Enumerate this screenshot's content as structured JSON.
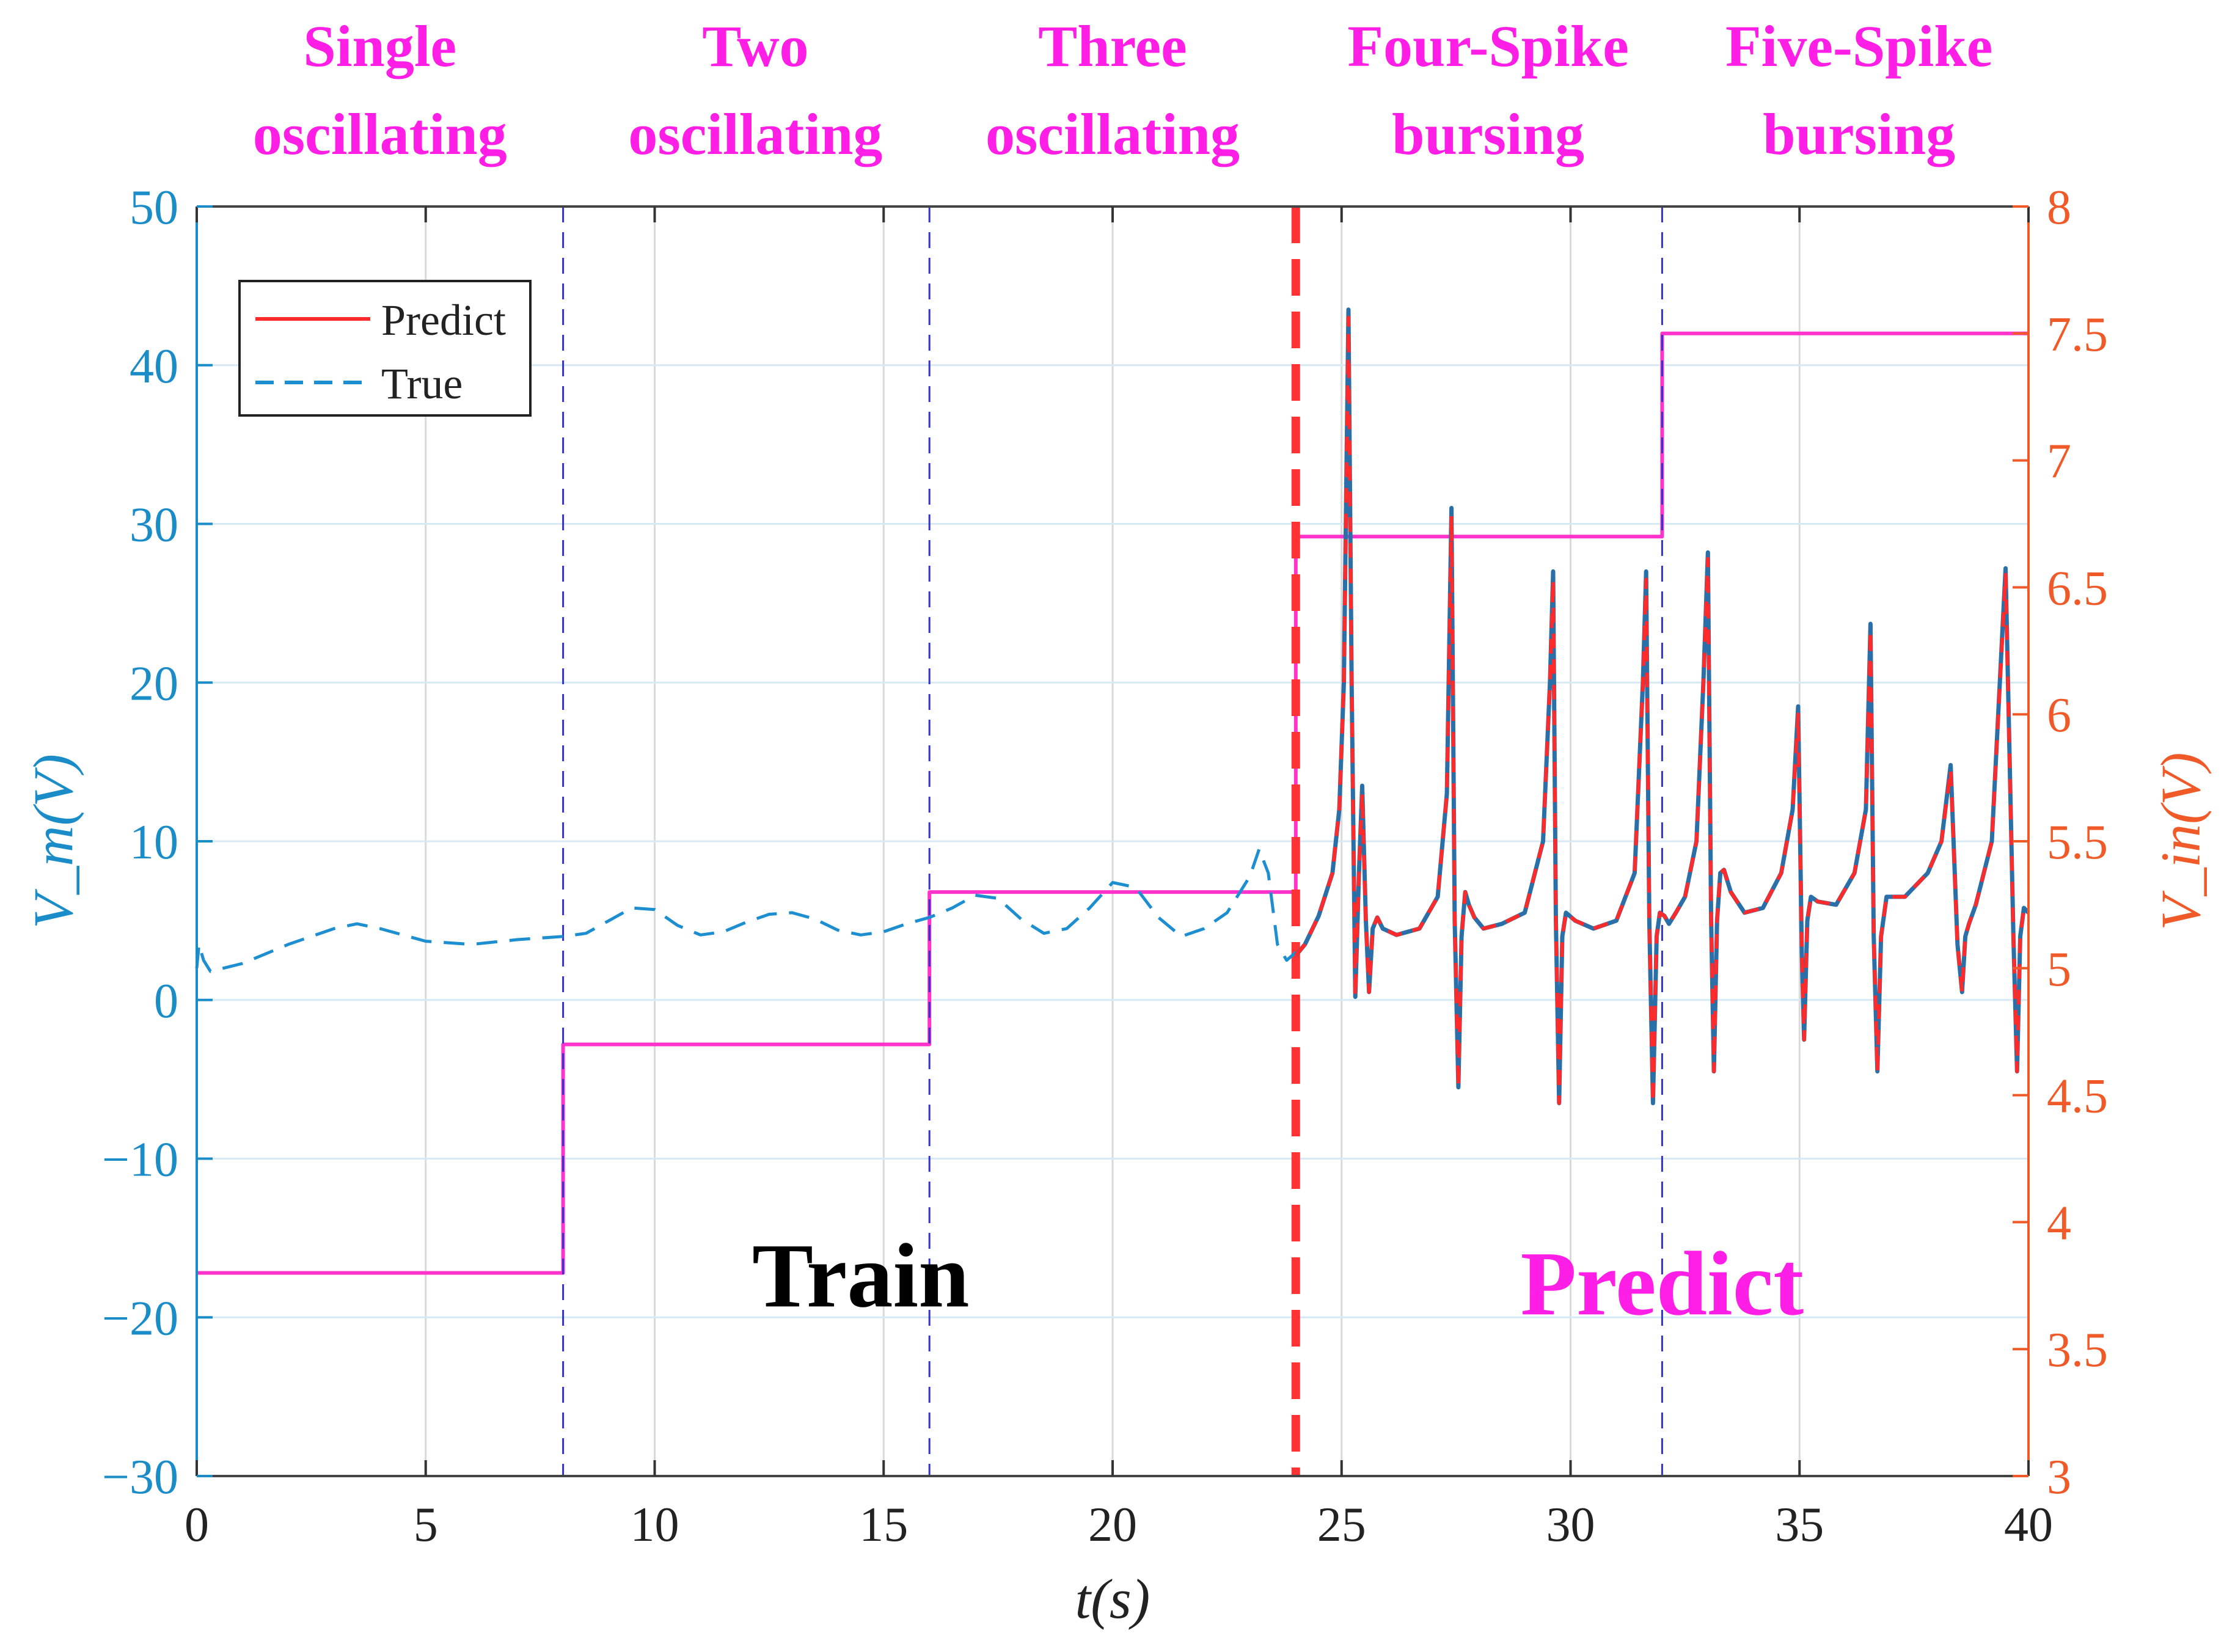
{
  "chart_data": {
    "type": "line",
    "xlabel": "t(s)",
    "ylabel_left": "V_m(V)",
    "ylabel_right": "V_in(V)",
    "xlim": [
      0,
      40
    ],
    "ylim_left": [
      -30,
      50
    ],
    "ylim_right": [
      3,
      8
    ],
    "xticks": [
      0,
      5,
      10,
      15,
      20,
      25,
      30,
      35,
      40
    ],
    "yticks_left": [
      -30,
      -20,
      -10,
      0,
      10,
      20,
      30,
      40,
      50
    ],
    "yticks_right": [
      3,
      3.5,
      4,
      4.5,
      5,
      5.5,
      6,
      6.5,
      7,
      7.5,
      8
    ],
    "grid": true,
    "colors": {
      "vm_axis": "#1a8cc8",
      "vin_axis": "#f05a28",
      "predict_line": "#ff2a2a",
      "true_line": "#2a6fa8",
      "true_train_line": "#1d8fd0",
      "input_line": "#ff33cc",
      "region_title": "#ff1ee6",
      "segment_divider": "#3333cc",
      "train_predict_divider": "#ff3333",
      "grid": "#d9d9d9",
      "grid_blue": "#d6e9f5"
    },
    "legend": {
      "position": "top-left",
      "entries": [
        {
          "label": "Predict",
          "style": "solid",
          "color": "#ff2a2a"
        },
        {
          "label": "True",
          "style": "dashed",
          "color": "#1d8fd0"
        }
      ]
    },
    "region_titles": [
      {
        "line1": "Single",
        "line2": "oscillating",
        "x_center": 4
      },
      {
        "line1": "Two",
        "line2": "oscillating",
        "x_center": 12.2
      },
      {
        "line1": "Three",
        "line2": "oscillating",
        "x_center": 20
      },
      {
        "line1": "Four-Spike",
        "line2": "bursing",
        "x_center": 28.2
      },
      {
        "line1": "Five-Spike",
        "line2": "bursing",
        "x_center": 36.3
      }
    ],
    "annotations": [
      {
        "text": "Train",
        "x": 14.5,
        "y": -17,
        "color": "#000000"
      },
      {
        "text": "Predict",
        "x": 32,
        "y": -17.5,
        "color": "#ff1ee6"
      }
    ],
    "segment_boundaries": [
      8,
      16,
      32
    ],
    "train_predict_boundary": 24,
    "series": [
      {
        "name": "Input voltage V_in",
        "axis": "right",
        "style": "step",
        "color": "#ff33cc",
        "x": [
          0,
          8,
          8,
          16,
          16,
          24,
          24,
          32,
          32,
          40
        ],
        "y": [
          3.8,
          3.8,
          4.7,
          4.7,
          5.3,
          5.3,
          6.7,
          6.7,
          7.5,
          7.5
        ]
      },
      {
        "name": "True (train)",
        "axis": "left",
        "style": "dashed",
        "color": "#1d8fd0",
        "x": [
          0,
          0.05,
          0.15,
          0.3,
          1,
          2,
          3,
          3.5,
          4,
          5,
          6,
          7,
          7.5,
          8,
          8.5,
          9,
          9.5,
          10,
          10.5,
          11,
          11.5,
          12,
          12.5,
          13,
          13.5,
          14,
          14.5,
          15,
          15.5,
          16,
          16.5,
          17,
          17.5,
          18,
          18.5,
          19,
          19.5,
          20,
          20.5,
          21,
          21.5,
          22,
          22.5,
          23,
          23.2,
          23.4,
          23.6,
          23.8,
          24
        ],
        "y": [
          2,
          3.5,
          2.5,
          1.8,
          2.3,
          3.5,
          4.5,
          4.8,
          4.5,
          3.7,
          3.5,
          3.8,
          3.9,
          4,
          4.2,
          5,
          5.8,
          5.7,
          4.7,
          4.1,
          4.3,
          4.9,
          5.4,
          5.5,
          5.1,
          4.4,
          4.1,
          4.3,
          4.8,
          5.2,
          5.8,
          6.6,
          6.4,
          5.1,
          4.2,
          4.5,
          5.8,
          7.4,
          7.1,
          5.2,
          4,
          4.5,
          5.5,
          7.8,
          9.5,
          8,
          3.5,
          2.5,
          3
        ]
      },
      {
        "name": "True (predict window)",
        "axis": "left",
        "style": "solid",
        "color": "#2a6fa8",
        "x": [
          24,
          24.2,
          24.5,
          24.8,
          24.95,
          25.05,
          25.15,
          25.22,
          25.3,
          25.38,
          25.45,
          25.53,
          25.6,
          25.68,
          25.78,
          25.9,
          26.2,
          26.7,
          27.1,
          27.3,
          27.4,
          27.47,
          27.55,
          27.62,
          27.7,
          27.78,
          27.9,
          28.1,
          28.5,
          29,
          29.4,
          29.55,
          29.62,
          29.68,
          29.75,
          29.82,
          29.9,
          30.1,
          30.5,
          31,
          31.4,
          31.58,
          31.65,
          31.72,
          31.8,
          31.88,
          31.95,
          32.05,
          32.15,
          32.3,
          32.5,
          32.75,
          32.9,
          33,
          33.07,
          33.13,
          33.2,
          33.27,
          33.35,
          33.5,
          33.8,
          34.2,
          34.6,
          34.85,
          34.97,
          35.05,
          35.1,
          35.17,
          35.25,
          35.4,
          35.8,
          36.2,
          36.45,
          36.55,
          36.62,
          36.7,
          36.78,
          36.9,
          37.3,
          37.8,
          38.1,
          38.3,
          38.45,
          38.55,
          38.62,
          38.7,
          38.85,
          39.2,
          39.5,
          39.67,
          39.75,
          39.82,
          39.9,
          40
        ],
        "y": [
          2.8,
          3.5,
          5.3,
          8,
          12,
          20,
          43.5,
          20,
          0.2,
          8,
          13.5,
          5,
          0.5,
          4.5,
          5.2,
          4.5,
          4.1,
          4.5,
          6.5,
          13,
          31,
          5,
          -5.5,
          4,
          6.8,
          6,
          5.2,
          4.5,
          4.8,
          5.5,
          10,
          20,
          27,
          5,
          -6.5,
          4,
          5.5,
          5,
          4.5,
          5,
          8,
          20,
          27,
          5,
          -6.5,
          4,
          5.5,
          5.3,
          4.8,
          5.5,
          6.5,
          10,
          20,
          28.2,
          5,
          -4.5,
          5,
          8,
          8.2,
          6.8,
          5.5,
          5.8,
          8,
          12,
          18.5,
          3,
          -2.5,
          5,
          6.5,
          6.2,
          6,
          8,
          12,
          23.7,
          4,
          -4.5,
          4,
          6.5,
          6.5,
          8,
          10,
          14.8,
          3.5,
          0.5,
          4,
          4.8,
          6,
          10,
          27.2,
          4,
          -4.5,
          4,
          5.8,
          5.5
        ]
      },
      {
        "name": "Predict",
        "axis": "left",
        "style": "dashed",
        "color": "#ff2a2a",
        "x": [
          24,
          24.2,
          24.5,
          24.8,
          24.95,
          25.05,
          25.15,
          25.22,
          25.3,
          25.38,
          25.45,
          25.53,
          25.6,
          25.68,
          25.78,
          25.9,
          26.2,
          26.7,
          27.1,
          27.3,
          27.4,
          27.47,
          27.55,
          27.62,
          27.7,
          27.78,
          27.9,
          28.1,
          28.5,
          29,
          29.4,
          29.55,
          29.62,
          29.68,
          29.75,
          29.82,
          29.9,
          30.1,
          30.5,
          31,
          31.4,
          31.58,
          31.65,
          31.72,
          31.8,
          31.88,
          31.95,
          32.05,
          32.15,
          32.3,
          32.5,
          32.75,
          32.9,
          33,
          33.07,
          33.13,
          33.2,
          33.27,
          33.35,
          33.5,
          33.8,
          34.2,
          34.6,
          34.85,
          34.97,
          35.05,
          35.1,
          35.17,
          35.25,
          35.4,
          35.8,
          36.2,
          36.45,
          36.55,
          36.62,
          36.7,
          36.78,
          36.9,
          37.3,
          37.8,
          38.1,
          38.3,
          38.45,
          38.55,
          38.62,
          38.7,
          38.85,
          39.2,
          39.5,
          39.67,
          39.75,
          39.82,
          39.9,
          40
        ],
        "y": [
          2.8,
          3.5,
          5.3,
          8,
          12,
          20,
          43,
          20,
          0.2,
          8,
          13,
          5,
          0.5,
          4.5,
          5.2,
          4.5,
          4.1,
          4.5,
          6.5,
          13,
          30.5,
          5,
          -5.5,
          4,
          6.8,
          6,
          5.2,
          4.5,
          4.8,
          5.5,
          10,
          20,
          26.5,
          5,
          -6.5,
          4,
          5.5,
          5,
          4.5,
          5,
          8,
          20,
          26.5,
          5,
          -6.5,
          4,
          5.5,
          5.3,
          4.8,
          5.5,
          6.5,
          10,
          20,
          27.8,
          5,
          -4.5,
          5,
          8,
          8.2,
          6.8,
          5.5,
          5.8,
          8,
          12,
          18,
          3,
          -2.5,
          5,
          6.5,
          6.2,
          6,
          8,
          12,
          23.3,
          4,
          -4.5,
          4,
          6.5,
          6.5,
          8,
          10,
          14.5,
          3.5,
          0.5,
          4,
          4.8,
          6,
          10,
          26.8,
          4,
          -4.5,
          4,
          5.8,
          5.5
        ]
      }
    ]
  }
}
